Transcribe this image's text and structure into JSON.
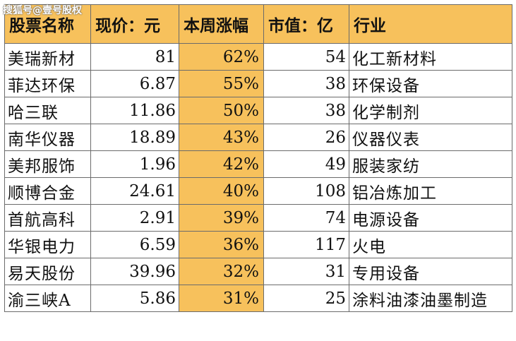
{
  "watermark": "搜狐号@壹号股权",
  "table": {
    "headers": [
      "股票名称",
      "现价：元",
      "本周涨幅",
      "市值：亿",
      "行业"
    ],
    "rows": [
      {
        "name": "美瑞新材",
        "price": "81",
        "change": "62%",
        "cap": "54",
        "industry": "化工新材料"
      },
      {
        "name": "菲达环保",
        "price": "6.87",
        "change": "55%",
        "cap": "38",
        "industry": "环保设备"
      },
      {
        "name": "哈三联",
        "price": "11.86",
        "change": "50%",
        "cap": "38",
        "industry": "化学制剂"
      },
      {
        "name": "南华仪器",
        "price": "18.89",
        "change": "43%",
        "cap": "26",
        "industry": "仪器仪表"
      },
      {
        "name": "美邦服饰",
        "price": "1.96",
        "change": "42%",
        "cap": "49",
        "industry": "服装家纺"
      },
      {
        "name": "顺博合金",
        "price": "24.61",
        "change": "40%",
        "cap": "108",
        "industry": "铝冶炼加工"
      },
      {
        "name": "首航高科",
        "price": "2.91",
        "change": "39%",
        "cap": "74",
        "industry": "电源设备"
      },
      {
        "name": "华银电力",
        "price": "6.59",
        "change": "36%",
        "cap": "117",
        "industry": "火电"
      },
      {
        "name": "易天股份",
        "price": "39.96",
        "change": "32%",
        "cap": "31",
        "industry": "专用设备"
      },
      {
        "name": "渝三峡A",
        "price": "5.86",
        "change": "31%",
        "cap": "25",
        "industry": "涂料油漆油墨制造"
      }
    ]
  },
  "colors": {
    "header_fill": "#f7c15c",
    "highlight_fill": "#f7c15c",
    "grid_line": "#6b6b6b"
  }
}
